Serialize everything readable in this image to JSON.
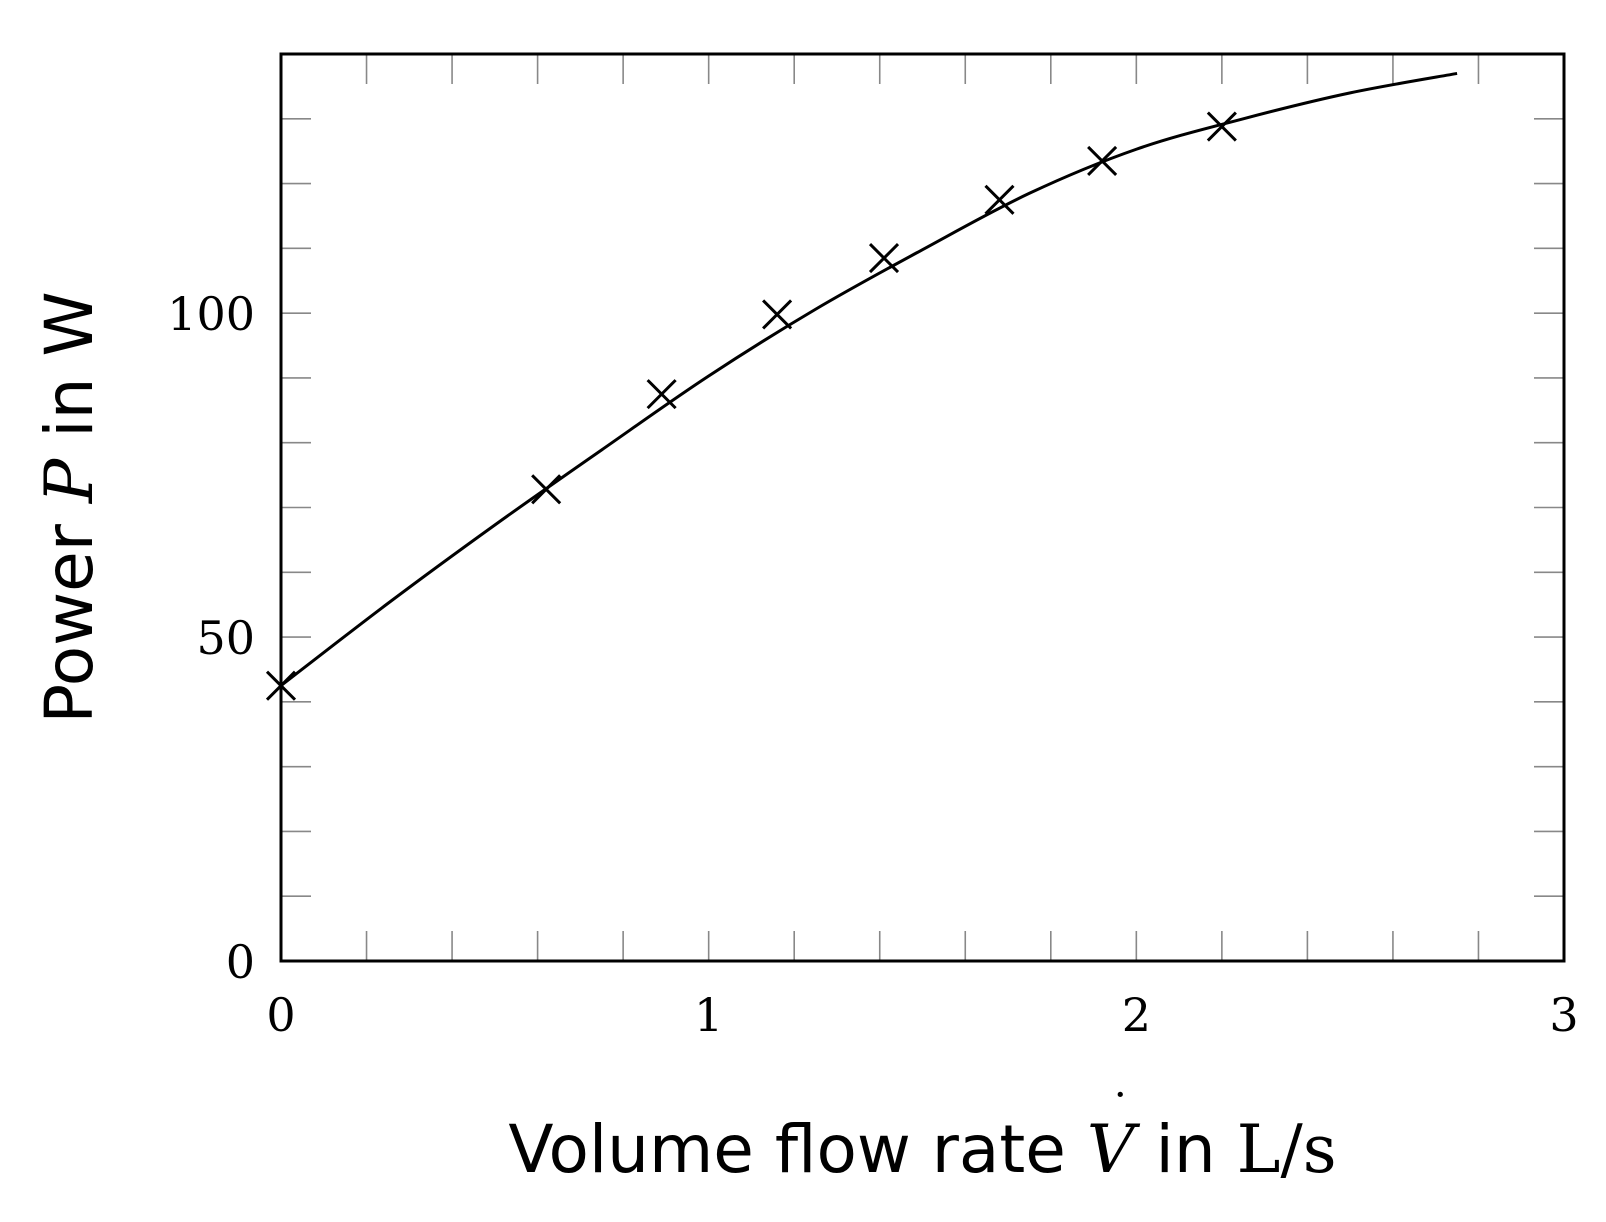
{
  "chart_data": {
    "type": "line",
    "xlabel": {
      "prefix": "Volume flow rate ",
      "symbol": "V",
      "suffix": " in ",
      "unit": "L/s"
    },
    "ylabel": {
      "prefix": "Power ",
      "symbol": "P",
      "suffix": " in W"
    },
    "xlim": [
      0,
      3
    ],
    "ylim": [
      0,
      140
    ],
    "x_ticks": [
      0,
      1,
      2,
      3
    ],
    "y_ticks": [
      0,
      50,
      100
    ],
    "x_minor_step": 0.2,
    "y_minor_step": 10,
    "grid": false,
    "series": [
      {
        "type": "scatter",
        "marker": "cross",
        "points": [
          {
            "x": 0.0,
            "y": 42.5
          },
          {
            "x": 0.62,
            "y": 72.8
          },
          {
            "x": 0.89,
            "y": 87.5
          },
          {
            "x": 1.16,
            "y": 99.8
          },
          {
            "x": 1.41,
            "y": 108.5
          },
          {
            "x": 1.68,
            "y": 117.5
          },
          {
            "x": 1.92,
            "y": 123.5
          },
          {
            "x": 2.2,
            "y": 128.8
          }
        ]
      },
      {
        "type": "line",
        "style": "fit-curve",
        "points": [
          {
            "x": 0.0,
            "y": 42.5
          },
          {
            "x": 0.25,
            "y": 55.2
          },
          {
            "x": 0.5,
            "y": 67.3
          },
          {
            "x": 0.75,
            "y": 78.9
          },
          {
            "x": 1.0,
            "y": 90.3
          },
          {
            "x": 1.25,
            "y": 100.6
          },
          {
            "x": 1.5,
            "y": 109.8
          },
          {
            "x": 1.75,
            "y": 118.5
          },
          {
            "x": 2.0,
            "y": 125.3
          },
          {
            "x": 2.25,
            "y": 130.0
          },
          {
            "x": 2.5,
            "y": 134.0
          },
          {
            "x": 2.75,
            "y": 137.0
          }
        ]
      }
    ],
    "colors": {
      "line": "#000000",
      "marker": "#000000",
      "frame": "#000000",
      "minor_tick": "#888888"
    }
  }
}
